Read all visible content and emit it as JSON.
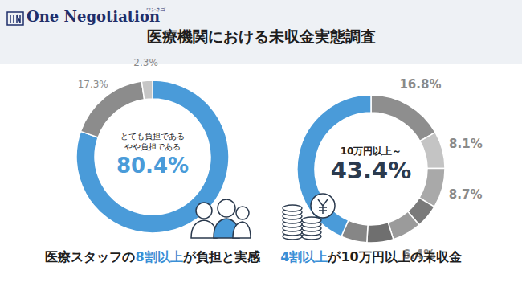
{
  "header": {
    "logo": "One Negotiation",
    "logo_sub": "ワンネゴ",
    "title": "医療機関における未収金実態調査"
  },
  "chart_data": [
    {
      "type": "donut",
      "center_text": [
        "とても負担である",
        "やや負担である"
      ],
      "values": [
        80.4,
        17.3,
        2.3
      ],
      "value_labels": [
        "80.4%",
        "17.3%",
        "2.3%"
      ],
      "colors": [
        "#4a9bd9",
        "#8c8c8c",
        "#c6c6c6"
      ],
      "caption": "医療スタッフの8割以上が負担と実感",
      "caption_highlight": "8割以上"
    },
    {
      "type": "donut",
      "center_text": [
        "10万円以上～"
      ],
      "values": [
        16.8,
        8.1,
        8.7,
        5.1,
        6.4,
        5.8,
        5.7,
        43.4
      ],
      "value_labels": [
        "16.8%",
        "8.1%",
        "8.7%",
        null,
        "6.4%",
        null,
        null,
        "43.4%"
      ],
      "colors": [
        "#8e8e8e",
        "#c4c4c4",
        "#a9a9a9",
        "#7a7a7a",
        "#9b9b9b",
        "#6f6f6f",
        "#868686",
        "#4a9bd9"
      ],
      "caption": "4割以上が10万円以上の未収金",
      "caption_highlight": "4割以上"
    }
  ]
}
